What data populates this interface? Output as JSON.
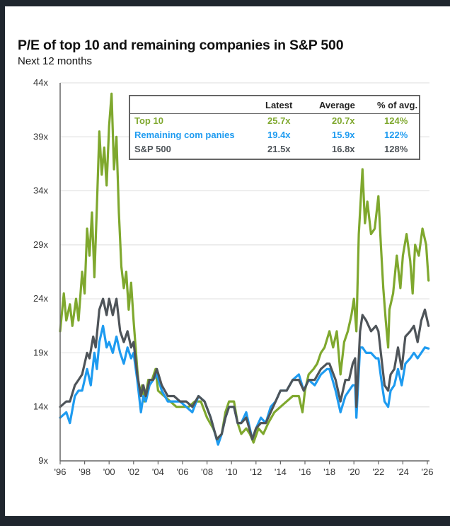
{
  "chart_data": {
    "type": "line",
    "title": "P/E of top 10 and remaining companies in S&P 500",
    "subtitle": "Next 12 months",
    "xlabel": "",
    "ylabel": "",
    "xlim": [
      1996,
      2026.2
    ],
    "ylim": [
      9,
      44
    ],
    "grid": true,
    "y_ticks": [
      9,
      14,
      19,
      24,
      29,
      34,
      39,
      44
    ],
    "y_tick_labels": [
      "9x",
      "14x",
      "19x",
      "24x",
      "29x",
      "34x",
      "39x",
      "44x"
    ],
    "x_ticks": [
      1996,
      1998,
      2000,
      2002,
      2004,
      2006,
      2008,
      2010,
      2012,
      2014,
      2016,
      2018,
      2020,
      2022,
      2024,
      2026
    ],
    "x_tick_labels": [
      "'96",
      "'98",
      "'00",
      "'02",
      "'04",
      "'06",
      "'08",
      "'10",
      "'12",
      "'14",
      "'16",
      "'18",
      "'20",
      "'22",
      "'24",
      "'26"
    ],
    "legend": {
      "placement": "top-right",
      "headers": [
        "",
        "Latest",
        "Average",
        "% of avg."
      ],
      "rows": [
        {
          "name": "Top 10",
          "latest": "25.7x",
          "average": "20.7x",
          "pct_of_avg": "124%",
          "color": "#7fa82e"
        },
        {
          "name": "Remaining com panies",
          "latest": "19.4x",
          "average": "15.9x",
          "pct_of_avg": "122%",
          "color": "#1e9bf0"
        },
        {
          "name": "S&P 500",
          "latest": "21.5x",
          "average": "16.8x",
          "pct_of_avg": "128%",
          "color": "#4e5459"
        }
      ]
    },
    "series": [
      {
        "name": "Top 10",
        "color": "#7fa82e",
        "x": [
          1996.0,
          1996.3,
          1996.5,
          1996.8,
          1997.0,
          1997.3,
          1997.5,
          1997.8,
          1998.0,
          1998.2,
          1998.4,
          1998.6,
          1998.8,
          1999.0,
          1999.2,
          1999.4,
          1999.6,
          1999.8,
          2000.0,
          2000.2,
          2000.4,
          2000.6,
          2000.8,
          2001.0,
          2001.2,
          2001.4,
          2001.6,
          2001.8,
          2002.0,
          2002.3,
          2002.5,
          2002.7,
          2002.9,
          2003.2,
          2003.5,
          2003.8,
          2004.0,
          2004.5,
          2005.0,
          2005.5,
          2006.0,
          2006.5,
          2007.0,
          2007.5,
          2008.0,
          2008.5,
          2008.9,
          2009.2,
          2009.5,
          2009.8,
          2010.2,
          2010.5,
          2010.8,
          2011.2,
          2011.5,
          2011.8,
          2012.2,
          2012.6,
          2013.0,
          2013.5,
          2014.0,
          2014.5,
          2015.0,
          2015.5,
          2015.8,
          2016.0,
          2016.3,
          2016.7,
          2017.0,
          2017.3,
          2017.6,
          2018.0,
          2018.3,
          2018.6,
          2018.9,
          2019.2,
          2019.5,
          2019.8,
          2020.0,
          2020.2,
          2020.4,
          2020.7,
          2020.9,
          2021.1,
          2021.4,
          2021.7,
          2022.0,
          2022.2,
          2022.4,
          2022.6,
          2022.8,
          2022.9,
          2023.2,
          2023.5,
          2023.8,
          2024.0,
          2024.3,
          2024.6,
          2024.8,
          2025.0,
          2025.3,
          2025.6,
          2025.9,
          2026.1
        ],
        "values": [
          21,
          24.5,
          22,
          23.5,
          21.5,
          24,
          22,
          26.5,
          24.5,
          30.5,
          28,
          32,
          26,
          32.5,
          39.5,
          35.5,
          38,
          34.5,
          40,
          43,
          36,
          39,
          32,
          27,
          25,
          26.5,
          23,
          25.5,
          22,
          17.5,
          15,
          16,
          14.5,
          16.5,
          16.5,
          17.5,
          15.5,
          15,
          14.5,
          14,
          14,
          14,
          14.5,
          14.5,
          13,
          12,
          10.8,
          11.5,
          13.5,
          14.5,
          14.5,
          12.5,
          11.5,
          12,
          11.5,
          10.7,
          12,
          11.5,
          12.5,
          13.5,
          14,
          14.5,
          15,
          15,
          13.5,
          15.5,
          17,
          17.5,
          18,
          19,
          19.5,
          21,
          19.5,
          21,
          17,
          20,
          21,
          22.5,
          24,
          21,
          30,
          36,
          31,
          33,
          30,
          30.5,
          33.5,
          29,
          25,
          22,
          19.5,
          23,
          24.5,
          28,
          25,
          28,
          30,
          27.5,
          24.5,
          29,
          28,
          30.5,
          29,
          25.7
        ]
      },
      {
        "name": "Remaining companies",
        "color": "#1e9bf0",
        "x": [
          1996.0,
          1996.5,
          1996.8,
          1997.2,
          1997.5,
          1997.8,
          1998.2,
          1998.5,
          1998.8,
          1999.0,
          1999.2,
          1999.5,
          1999.8,
          2000.0,
          2000.3,
          2000.6,
          2000.9,
          2001.2,
          2001.5,
          2001.8,
          2002.0,
          2002.3,
          2002.6,
          2002.8,
          2003.0,
          2003.3,
          2003.6,
          2003.9,
          2004.3,
          2004.8,
          2005.3,
          2005.8,
          2006.3,
          2006.8,
          2007.3,
          2007.8,
          2008.3,
          2008.9,
          2009.2,
          2009.5,
          2009.8,
          2010.2,
          2010.5,
          2010.8,
          2011.2,
          2011.7,
          2012.0,
          2012.4,
          2012.8,
          2013.2,
          2013.6,
          2014.0,
          2014.5,
          2015.0,
          2015.5,
          2015.9,
          2016.3,
          2016.8,
          2017.3,
          2017.8,
          2018.0,
          2018.5,
          2018.9,
          2019.3,
          2019.6,
          2019.9,
          2020.1,
          2020.2,
          2020.5,
          2020.7,
          2021.0,
          2021.4,
          2021.8,
          2022.0,
          2022.3,
          2022.5,
          2022.8,
          2023.0,
          2023.3,
          2023.6,
          2023.9,
          2024.2,
          2024.6,
          2024.9,
          2025.2,
          2025.5,
          2025.8,
          2026.1
        ],
        "values": [
          13,
          13.5,
          12.5,
          15,
          15.5,
          15.5,
          17.5,
          16,
          19,
          17.5,
          20,
          21.5,
          19.5,
          20,
          19,
          20.5,
          19,
          18,
          19.5,
          18.5,
          19,
          16.5,
          13.5,
          15,
          14.5,
          16,
          16.5,
          17,
          15.5,
          14.5,
          14.5,
          14.5,
          14,
          13.5,
          15,
          14.5,
          13,
          10.5,
          11.5,
          13,
          14,
          14,
          12.5,
          12.5,
          13.5,
          11,
          12,
          13,
          12.5,
          14,
          14.5,
          15.5,
          15.5,
          16.5,
          17,
          15.5,
          16.5,
          16,
          17,
          17.5,
          17.5,
          15.5,
          13.5,
          15,
          15.5,
          16,
          16,
          13,
          19.5,
          19.5,
          19,
          19,
          18.5,
          18.5,
          16,
          14.5,
          14,
          15.5,
          16,
          17.5,
          16,
          18,
          18.5,
          19,
          18.5,
          19,
          19.5,
          19.4
        ]
      },
      {
        "name": "S&P 500",
        "color": "#4e5459",
        "x": [
          1996.0,
          1996.5,
          1996.8,
          1997.2,
          1997.5,
          1997.8,
          1998.2,
          1998.4,
          1998.7,
          1998.9,
          1999.2,
          1999.5,
          1999.8,
          2000.0,
          2000.3,
          2000.6,
          2000.9,
          2001.2,
          2001.5,
          2001.8,
          2002.0,
          2002.3,
          2002.6,
          2002.8,
          2003.0,
          2003.3,
          2003.6,
          2003.9,
          2004.3,
          2004.8,
          2005.3,
          2005.8,
          2006.3,
          2006.8,
          2007.3,
          2007.8,
          2008.3,
          2008.8,
          2009.2,
          2009.5,
          2009.8,
          2010.2,
          2010.5,
          2010.8,
          2011.2,
          2011.7,
          2012.0,
          2012.4,
          2012.8,
          2013.2,
          2013.6,
          2014.0,
          2014.5,
          2015.0,
          2015.5,
          2015.9,
          2016.3,
          2016.8,
          2017.3,
          2017.8,
          2018.0,
          2018.5,
          2018.9,
          2019.3,
          2019.6,
          2019.9,
          2020.1,
          2020.2,
          2020.5,
          2020.7,
          2021.0,
          2021.4,
          2021.8,
          2022.0,
          2022.3,
          2022.5,
          2022.8,
          2023.0,
          2023.3,
          2023.6,
          2023.9,
          2024.2,
          2024.6,
          2024.9,
          2025.2,
          2025.5,
          2025.8,
          2026.1
        ],
        "values": [
          14,
          14.5,
          14.5,
          16,
          16.5,
          17,
          19,
          18.5,
          20.5,
          19.5,
          23,
          24,
          22.5,
          24,
          22.5,
          24,
          21,
          20,
          21,
          19.5,
          20,
          17,
          15,
          16,
          15,
          16.5,
          16.5,
          17.5,
          16,
          15,
          15,
          14.5,
          14.5,
          14,
          15,
          14.5,
          13,
          11,
          11.5,
          13,
          14,
          14,
          12.5,
          12.5,
          13,
          11,
          12,
          12.5,
          12.5,
          13.5,
          14.5,
          15.5,
          15.5,
          16.5,
          16.5,
          15.5,
          16.5,
          16.5,
          17.5,
          18,
          18,
          16.5,
          14.5,
          16.5,
          16.5,
          18,
          18.5,
          14,
          21,
          22.5,
          22,
          21,
          21.5,
          21,
          18,
          16,
          15.5,
          17,
          17.5,
          19.5,
          17.5,
          20.5,
          21,
          21.5,
          20,
          22,
          23,
          21.5
        ]
      }
    ]
  }
}
